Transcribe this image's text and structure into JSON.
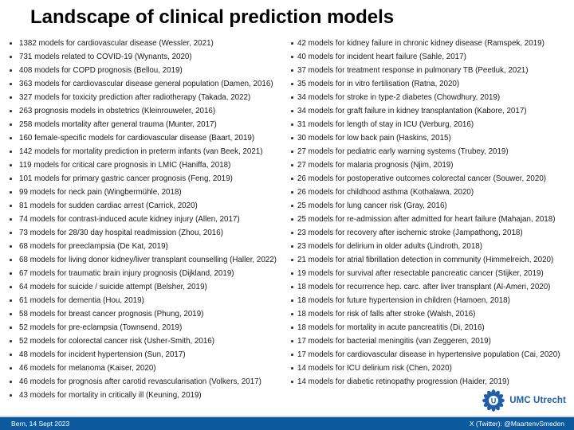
{
  "slide": {
    "title": "Landscape of clinical prediction models"
  },
  "columns": {
    "left": [
      "1382 models for cardiovascular disease (Wessler, 2021)",
      "731 models related to COVID-19 (Wynants, 2020)",
      "408 models for COPD prognosis (Bellou, 2019)",
      "363 models for cardiovascular disease general population (Damen, 2016)",
      "327 models for toxicity prediction after radiotherapy (Takada, 2022)",
      "263 prognosis models in obstetrics (Kleinrouweler, 2016)",
      "258 models mortality after general trauma (Munter, 2017)",
      "160 female-specific models for cardiovascular disease (Baart, 2019)",
      "142 models for mortality prediction in preterm infants (van Beek, 2021)",
      "119 models for critical care prognosis in LMIC (Haniffa, 2018)",
      "101 models for primary gastric cancer prognosis (Feng, 2019)",
      "99 models for neck pain (Wingbermühle, 2018)",
      "81 models for sudden cardiac arrest (Carrick, 2020)",
      "74 models for contrast-induced acute kidney injury (Allen, 2017)",
      "73 models for 28/30 day hospital readmission (Zhou, 2016)",
      "68 models for preeclampsia (De Kat, 2019)",
      "68 models for living donor kidney/liver transplant counselling (Haller, 2022)",
      "67 models for traumatic brain injury prognosis (Dijkland, 2019)",
      "64 models for suicide / suicide attempt (Belsher, 2019)",
      "61 models for dementia (Hou, 2019)",
      "58 models for breast cancer prognosis (Phung, 2019)",
      "52 models for pre-eclampsia (Townsend, 2019)",
      "52 models for colorectal cancer risk (Usher-Smith, 2016)",
      "48 models for incident hypertension (Sun, 2017)",
      "46 models for melanoma (Kaiser, 2020)",
      "46 models for prognosis after carotid revascularisation (Volkers, 2017)",
      "43 models for mortality in critically ill (Keuning, 2019)"
    ],
    "right": [
      "42 models for kidney failure in chronic kidney disease (Ramspek, 2019)",
      "40 models for incident heart failure (Sahle, 2017)",
      "37 models for treatment response in pulmonary TB (Peetluk, 2021)",
      "35 models for in vitro fertilisation (Ratna, 2020)",
      "34 models for stroke in type-2 diabetes (Chowdhury, 2019)",
      "34 models for graft failure in kidney transplantation (Kabore, 2017)",
      "31 models for length of stay in ICU (Verburg, 2016)",
      "30 models for low back pain (Haskins, 2015)",
      "27 models for pediatric early warning systems (Trubey, 2019)",
      "27 models for malaria prognosis (Njim, 2019)",
      "26 models for postoperative outcomes colorectal cancer (Souwer, 2020)",
      "26 models for childhood asthma (Kothalawa, 2020)",
      "25 models for lung cancer risk (Gray, 2016)",
      "25 models for re-admission after admitted for heart failure (Mahajan, 2018)",
      "23 models for recovery after ischemic stroke (Jampathong, 2018)",
      "23 models for delirium in older adults (Lindroth, 2018)",
      "21 models for atrial fibrillation detection in community (Himmelreich, 2020)",
      "19 models for survival after resectable pancreatic cancer (Stijker, 2019)",
      "18 models for recurrence hep. carc. after liver transplant (Al-Ameri, 2020)",
      "18 models for future hypertension in children (Hamoen, 2018)",
      "18 models for risk of falls after stroke (Walsh, 2016)",
      "18 models for mortality in acute pancreatitis (Di, 2016)",
      "17 models for bacterial meningitis (van Zeggeren, 2019)",
      "17 models for cardiovascular disease in hypertensive population (Cai, 2020)",
      "14 models for ICU delirium risk (Chen, 2020)",
      "14 models for diabetic retinopathy progression (Haider, 2019)"
    ]
  },
  "logo": {
    "letter": "U",
    "text": "UMC Utrecht",
    "color": "#1e5fa8"
  },
  "footer": {
    "date": "Bern, 14 Sept 2023",
    "twitter": "X (Twitter): @MaartenvSmeden",
    "bar_color": "#0d5a9e"
  }
}
